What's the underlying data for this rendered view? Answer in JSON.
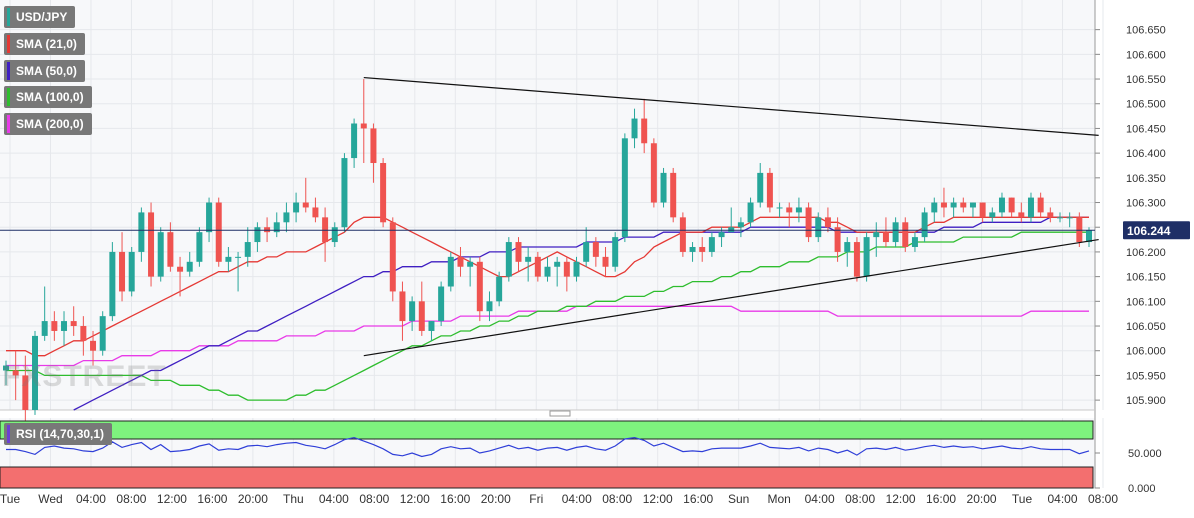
{
  "watermark": "FXSTREET",
  "legend": [
    {
      "label": "USD/JPY",
      "color": "#26a69a"
    },
    {
      "label": "SMA (21,0)",
      "color": "#e53935"
    },
    {
      "label": "SMA (50,0)",
      "color": "#3f1fc2"
    },
    {
      "label": "SMA (100,0)",
      "color": "#2ebd2e"
    },
    {
      "label": "SMA (200,0)",
      "color": "#e83ae8"
    }
  ],
  "rsi_legend": {
    "label": "RSI (14,70,30,1)",
    "color": "#6b3fd4"
  },
  "colors": {
    "up": "#26a69a",
    "down": "#ef5350",
    "sma21": "#e53935",
    "sma50": "#3f1fc2",
    "sma100": "#2ebd2e",
    "sma200": "#e83ae8",
    "rsi_line": "#2f3fd8",
    "rsi_overbought": "#7ef27e",
    "rsi_oversold": "#f36f6f",
    "price_tag": "#1f2f66"
  },
  "chart_data": {
    "type": "candlestick",
    "symbol": "USD/JPY",
    "last_price": 106.244,
    "last_price_label": "106.244",
    "y_ticks": [
      "106.650",
      "106.600",
      "106.550",
      "106.500",
      "106.450",
      "106.400",
      "106.350",
      "106.300",
      "106.250",
      "106.200",
      "106.150",
      "106.100",
      "106.050",
      "106.000",
      "105.950",
      "105.900"
    ],
    "ylim": [
      105.88,
      106.71
    ],
    "rsi_ticks": [
      "50.000",
      "0.000"
    ],
    "x_labels": [
      "Tue",
      "Wed",
      "04:00",
      "08:00",
      "12:00",
      "16:00",
      "20:00",
      "Thu",
      "04:00",
      "08:00",
      "12:00",
      "16:00",
      "20:00",
      "Fri",
      "04:00",
      "08:00",
      "12:00",
      "16:00",
      "Sun",
      "Mon",
      "04:00",
      "08:00",
      "12:00",
      "16:00",
      "20:00",
      "Tue",
      "04:00",
      "08:00"
    ],
    "candles": [
      [
        105.96,
        105.98,
        105.93,
        105.97
      ],
      [
        105.96,
        106.0,
        105.9,
        105.95
      ],
      [
        105.95,
        105.99,
        105.85,
        105.88
      ],
      [
        105.88,
        106.04,
        105.87,
        106.03
      ],
      [
        106.03,
        106.13,
        106.02,
        106.06
      ],
      [
        106.06,
        106.08,
        106.02,
        106.04
      ],
      [
        106.04,
        106.08,
        106.01,
        106.06
      ],
      [
        106.06,
        106.09,
        106.03,
        106.05
      ],
      [
        106.05,
        106.07,
        105.99,
        106.02
      ],
      [
        106.02,
        106.04,
        105.97,
        106.0
      ],
      [
        106.0,
        106.08,
        105.99,
        106.07
      ],
      [
        106.07,
        106.22,
        106.06,
        106.2
      ],
      [
        106.2,
        106.24,
        106.1,
        106.12
      ],
      [
        106.12,
        106.21,
        106.11,
        106.2
      ],
      [
        106.2,
        106.29,
        106.18,
        106.28
      ],
      [
        106.28,
        106.3,
        106.13,
        106.15
      ],
      [
        106.15,
        106.25,
        106.14,
        106.24
      ],
      [
        106.24,
        106.26,
        106.16,
        106.17
      ],
      [
        106.17,
        106.19,
        106.11,
        106.16
      ],
      [
        106.16,
        106.2,
        106.15,
        106.18
      ],
      [
        106.18,
        106.25,
        106.17,
        106.24
      ],
      [
        106.24,
        106.31,
        106.22,
        106.3
      ],
      [
        106.3,
        106.31,
        106.17,
        106.18
      ],
      [
        106.18,
        106.21,
        106.16,
        106.19
      ],
      [
        106.19,
        106.2,
        106.12,
        106.19
      ],
      [
        106.19,
        106.25,
        106.17,
        106.22
      ],
      [
        106.22,
        106.26,
        106.2,
        106.25
      ],
      [
        106.25,
        106.27,
        106.22,
        106.24
      ],
      [
        106.24,
        106.28,
        106.23,
        106.26
      ],
      [
        106.26,
        106.3,
        106.24,
        106.28
      ],
      [
        106.28,
        106.32,
        106.26,
        106.3
      ],
      [
        106.3,
        106.35,
        106.28,
        106.29
      ],
      [
        106.29,
        106.31,
        106.26,
        106.27
      ],
      [
        106.27,
        106.29,
        106.18,
        106.22
      ],
      [
        106.22,
        106.26,
        106.21,
        106.25
      ],
      [
        106.25,
        106.4,
        106.24,
        106.39
      ],
      [
        106.39,
        106.47,
        106.37,
        106.46
      ],
      [
        106.46,
        106.55,
        106.38,
        106.45
      ],
      [
        106.45,
        106.46,
        106.34,
        106.38
      ],
      [
        106.38,
        106.39,
        106.25,
        106.26
      ],
      [
        106.26,
        106.27,
        106.1,
        106.12
      ],
      [
        106.12,
        106.14,
        106.02,
        106.06
      ],
      [
        106.06,
        106.11,
        106.04,
        106.1
      ],
      [
        106.1,
        106.14,
        106.03,
        106.04
      ],
      [
        106.04,
        106.06,
        106.02,
        106.06
      ],
      [
        106.06,
        106.14,
        106.05,
        106.13
      ],
      [
        106.13,
        106.2,
        106.12,
        106.19
      ],
      [
        106.19,
        106.21,
        106.15,
        106.17
      ],
      [
        106.17,
        106.19,
        106.13,
        106.18
      ],
      [
        106.18,
        106.19,
        106.06,
        106.08
      ],
      [
        106.08,
        106.12,
        106.06,
        106.1
      ],
      [
        106.1,
        106.16,
        106.09,
        106.15
      ],
      [
        106.15,
        106.23,
        106.14,
        106.22
      ],
      [
        106.22,
        106.23,
        106.16,
        106.18
      ],
      [
        106.18,
        106.21,
        106.14,
        106.19
      ],
      [
        106.19,
        106.2,
        106.14,
        106.15
      ],
      [
        106.15,
        106.19,
        106.14,
        106.17
      ],
      [
        106.17,
        106.19,
        106.13,
        106.18
      ],
      [
        106.18,
        106.19,
        106.12,
        106.15
      ],
      [
        106.15,
        106.19,
        106.14,
        106.18
      ],
      [
        106.18,
        106.25,
        106.17,
        106.22
      ],
      [
        106.22,
        106.23,
        106.17,
        106.19
      ],
      [
        106.19,
        106.21,
        106.15,
        106.17
      ],
      [
        106.17,
        106.24,
        106.16,
        106.23
      ],
      [
        106.23,
        106.44,
        106.22,
        106.43
      ],
      [
        106.43,
        106.49,
        106.41,
        106.47
      ],
      [
        106.47,
        106.51,
        106.4,
        106.42
      ],
      [
        106.42,
        106.43,
        106.29,
        106.3
      ],
      [
        106.3,
        106.37,
        106.29,
        106.36
      ],
      [
        106.36,
        106.37,
        106.26,
        106.27
      ],
      [
        106.27,
        106.28,
        106.19,
        106.2
      ],
      [
        106.2,
        106.22,
        106.18,
        106.21
      ],
      [
        106.21,
        106.23,
        106.18,
        106.2
      ],
      [
        106.2,
        106.24,
        106.19,
        106.23
      ],
      [
        106.23,
        106.25,
        106.21,
        106.24
      ],
      [
        106.24,
        106.29,
        106.24,
        106.25
      ],
      [
        106.25,
        106.27,
        106.23,
        106.26
      ],
      [
        106.26,
        106.31,
        106.25,
        106.3
      ],
      [
        106.3,
        106.38,
        106.29,
        106.36
      ],
      [
        106.36,
        106.37,
        106.28,
        106.29
      ],
      [
        106.29,
        106.3,
        106.27,
        106.29
      ],
      [
        106.29,
        106.3,
        106.25,
        106.28
      ],
      [
        106.28,
        106.31,
        106.26,
        106.29
      ],
      [
        106.29,
        106.3,
        106.22,
        106.23
      ],
      [
        106.23,
        106.28,
        106.22,
        106.27
      ],
      [
        106.27,
        106.29,
        106.24,
        106.25
      ],
      [
        106.25,
        106.27,
        106.18,
        106.2
      ],
      [
        106.2,
        106.23,
        106.17,
        106.22
      ],
      [
        106.22,
        106.23,
        106.14,
        106.15
      ],
      [
        106.15,
        106.24,
        106.14,
        106.23
      ],
      [
        106.23,
        106.26,
        106.19,
        106.24
      ],
      [
        106.24,
        106.27,
        106.21,
        106.22
      ],
      [
        106.22,
        106.27,
        106.21,
        106.26
      ],
      [
        106.26,
        106.27,
        106.2,
        106.21
      ],
      [
        106.21,
        106.24,
        106.2,
        106.23
      ],
      [
        106.23,
        106.29,
        106.22,
        106.28
      ],
      [
        106.28,
        106.31,
        106.26,
        106.3
      ],
      [
        106.3,
        106.33,
        106.27,
        106.29
      ],
      [
        106.29,
        106.31,
        106.27,
        106.3
      ],
      [
        106.3,
        106.31,
        106.28,
        106.29
      ],
      [
        106.29,
        106.3,
        106.27,
        106.3
      ],
      [
        106.3,
        106.3,
        106.26,
        106.27
      ],
      [
        106.27,
        106.29,
        106.26,
        106.28
      ],
      [
        106.28,
        106.32,
        106.27,
        106.31
      ],
      [
        106.31,
        106.31,
        106.27,
        106.28
      ],
      [
        106.28,
        106.3,
        106.26,
        106.27
      ],
      [
        106.27,
        106.32,
        106.26,
        106.31
      ],
      [
        106.31,
        106.32,
        106.27,
        106.28
      ],
      [
        106.28,
        106.29,
        106.26,
        106.27
      ],
      [
        106.27,
        106.28,
        106.26,
        106.27
      ],
      [
        106.27,
        106.28,
        106.25,
        106.27
      ],
      [
        106.27,
        106.28,
        106.21,
        106.22
      ],
      [
        106.22,
        106.25,
        106.21,
        106.244
      ]
    ],
    "sma21": [
      106.0,
      106.0,
      106.0,
      105.99,
      105.99,
      106.0,
      106.01,
      106.02,
      106.02,
      106.03,
      106.04,
      106.05,
      106.06,
      106.07,
      106.08,
      106.09,
      106.1,
      106.11,
      106.12,
      106.13,
      106.14,
      106.15,
      106.16,
      106.16,
      106.17,
      106.18,
      106.18,
      106.19,
      106.19,
      106.2,
      106.2,
      106.2,
      106.21,
      106.22,
      106.23,
      106.24,
      106.26,
      106.27,
      106.27,
      106.27,
      106.26,
      106.25,
      106.24,
      106.23,
      106.22,
      106.21,
      106.2,
      106.19,
      106.18,
      106.17,
      106.16,
      106.15,
      106.15,
      106.16,
      106.17,
      106.18,
      106.19,
      106.2,
      106.19,
      106.18,
      106.17,
      106.16,
      106.15,
      106.15,
      106.16,
      106.18,
      106.19,
      106.21,
      106.22,
      106.23,
      106.24,
      106.24,
      106.24,
      106.25,
      106.25,
      106.25,
      106.25,
      106.26,
      106.27,
      106.27,
      106.27,
      106.27,
      106.27,
      106.27,
      106.27,
      106.26,
      106.26,
      106.25,
      106.24,
      106.24,
      106.24,
      106.24,
      106.24,
      106.24,
      106.24,
      106.25,
      106.26,
      106.26,
      106.27,
      106.27,
      106.27,
      106.27,
      106.27,
      106.27,
      106.27,
      106.27,
      106.27,
      106.27,
      106.27,
      106.27,
      106.27,
      106.27,
      106.27
    ],
    "sma50": [
      null,
      null,
      null,
      null,
      null,
      null,
      null,
      105.88,
      105.89,
      105.9,
      105.91,
      105.92,
      105.93,
      105.94,
      105.95,
      105.96,
      105.96,
      105.97,
      105.98,
      105.99,
      106.0,
      106.01,
      106.01,
      106.02,
      106.03,
      106.04,
      106.04,
      106.05,
      106.06,
      106.07,
      106.08,
      106.09,
      106.1,
      106.11,
      106.12,
      106.13,
      106.14,
      106.15,
      106.15,
      106.16,
      106.16,
      106.17,
      106.17,
      106.17,
      106.18,
      106.18,
      106.18,
      106.19,
      106.19,
      106.19,
      106.2,
      106.2,
      106.2,
      106.21,
      106.21,
      106.21,
      106.21,
      106.21,
      106.21,
      106.21,
      106.22,
      106.22,
      106.22,
      106.22,
      106.23,
      106.23,
      106.23,
      106.23,
      106.24,
      106.24,
      106.24,
      106.24,
      106.24,
      106.24,
      106.24,
      106.24,
      106.24,
      106.25,
      106.25,
      106.25,
      106.25,
      106.25,
      106.25,
      106.25,
      106.25,
      106.25,
      106.24,
      106.24,
      106.24,
      106.24,
      106.24,
      106.24,
      106.24,
      106.24,
      106.24,
      106.24,
      106.24,
      106.25,
      106.25,
      106.25,
      106.25,
      106.26,
      106.26,
      106.26,
      106.26,
      106.26,
      106.26,
      106.26,
      106.27,
      106.27,
      106.27,
      106.27,
      106.27
    ],
    "sma100": [
      105.96,
      105.96,
      105.96,
      105.96,
      105.95,
      105.95,
      105.95,
      105.95,
      105.95,
      105.95,
      105.95,
      105.95,
      105.95,
      105.95,
      105.95,
      105.94,
      105.94,
      105.94,
      105.93,
      105.93,
      105.93,
      105.92,
      105.92,
      105.91,
      105.91,
      105.9,
      105.9,
      105.9,
      105.9,
      105.9,
      105.91,
      105.91,
      105.92,
      105.92,
      105.93,
      105.94,
      105.95,
      105.96,
      105.97,
      105.98,
      105.99,
      106.0,
      106.01,
      106.01,
      106.02,
      106.03,
      106.03,
      106.04,
      106.04,
      106.05,
      106.05,
      106.06,
      106.06,
      106.07,
      106.07,
      106.08,
      106.08,
      106.08,
      106.09,
      106.09,
      106.09,
      106.1,
      106.1,
      106.1,
      106.11,
      106.11,
      106.11,
      106.12,
      106.12,
      106.13,
      106.13,
      106.14,
      106.14,
      106.14,
      106.15,
      106.15,
      106.16,
      106.16,
      106.17,
      106.17,
      106.17,
      106.18,
      106.18,
      106.18,
      106.19,
      106.19,
      106.19,
      106.2,
      106.2,
      106.2,
      106.21,
      106.21,
      106.21,
      106.21,
      106.22,
      106.22,
      106.22,
      106.22,
      106.22,
      106.23,
      106.23,
      106.23,
      106.23,
      106.23,
      106.23,
      106.24,
      106.24,
      106.24,
      106.24,
      106.24,
      106.24,
      106.24,
      106.24
    ],
    "sma200": [
      105.97,
      105.97,
      105.97,
      105.97,
      105.97,
      105.97,
      105.97,
      105.97,
      105.98,
      105.98,
      105.98,
      105.98,
      105.99,
      105.99,
      105.99,
      105.99,
      106.0,
      106.0,
      106.0,
      106.0,
      106.01,
      106.01,
      106.01,
      106.01,
      106.02,
      106.02,
      106.02,
      106.02,
      106.02,
      106.03,
      106.03,
      106.03,
      106.03,
      106.04,
      106.04,
      106.04,
      106.04,
      106.05,
      106.05,
      106.05,
      106.05,
      106.05,
      106.06,
      106.06,
      106.06,
      106.06,
      106.06,
      106.07,
      106.07,
      106.07,
      106.07,
      106.07,
      106.07,
      106.08,
      106.08,
      106.08,
      106.08,
      106.08,
      106.08,
      106.09,
      106.09,
      106.09,
      106.09,
      106.09,
      106.09,
      106.09,
      106.09,
      106.09,
      106.09,
      106.09,
      106.09,
      106.09,
      106.09,
      106.09,
      106.09,
      106.09,
      106.08,
      106.08,
      106.08,
      106.08,
      106.08,
      106.08,
      106.08,
      106.08,
      106.08,
      106.08,
      106.07,
      106.07,
      106.07,
      106.07,
      106.07,
      106.07,
      106.07,
      106.07,
      106.07,
      106.07,
      106.07,
      106.07,
      106.07,
      106.07,
      106.07,
      106.07,
      106.07,
      106.07,
      106.07,
      106.07,
      106.08,
      106.08,
      106.08,
      106.08,
      106.08,
      106.08,
      106.08
    ],
    "trendline_upper": [
      [
        37,
        106.553
      ],
      [
        113,
        106.436
      ]
    ],
    "trendline_lower": [
      [
        37,
        105.99
      ],
      [
        113,
        106.225
      ]
    ],
    "rsi": [
      55,
      55,
      52,
      48,
      58,
      60,
      57,
      56,
      53,
      52,
      57,
      66,
      58,
      62,
      65,
      55,
      62,
      52,
      53,
      55,
      60,
      63,
      54,
      56,
      55,
      60,
      61,
      59,
      62,
      64,
      65,
      61,
      59,
      56,
      62,
      69,
      72,
      67,
      62,
      56,
      48,
      46,
      50,
      45,
      48,
      56,
      59,
      56,
      57,
      50,
      53,
      57,
      61,
      56,
      58,
      54,
      57,
      58,
      54,
      58,
      60,
      56,
      54,
      60,
      70,
      72,
      68,
      60,
      64,
      58,
      52,
      53,
      52,
      56,
      57,
      57,
      57,
      60,
      64,
      58,
      57,
      56,
      58,
      53,
      57,
      55,
      50,
      54,
      47,
      56,
      57,
      55,
      58,
      54,
      56,
      59,
      61,
      58,
      60,
      58,
      59,
      56,
      58,
      60,
      57,
      56,
      59,
      56,
      55,
      55,
      55,
      49,
      53
    ],
    "rsi_bands": {
      "overbought": 70,
      "oversold": 30
    }
  }
}
